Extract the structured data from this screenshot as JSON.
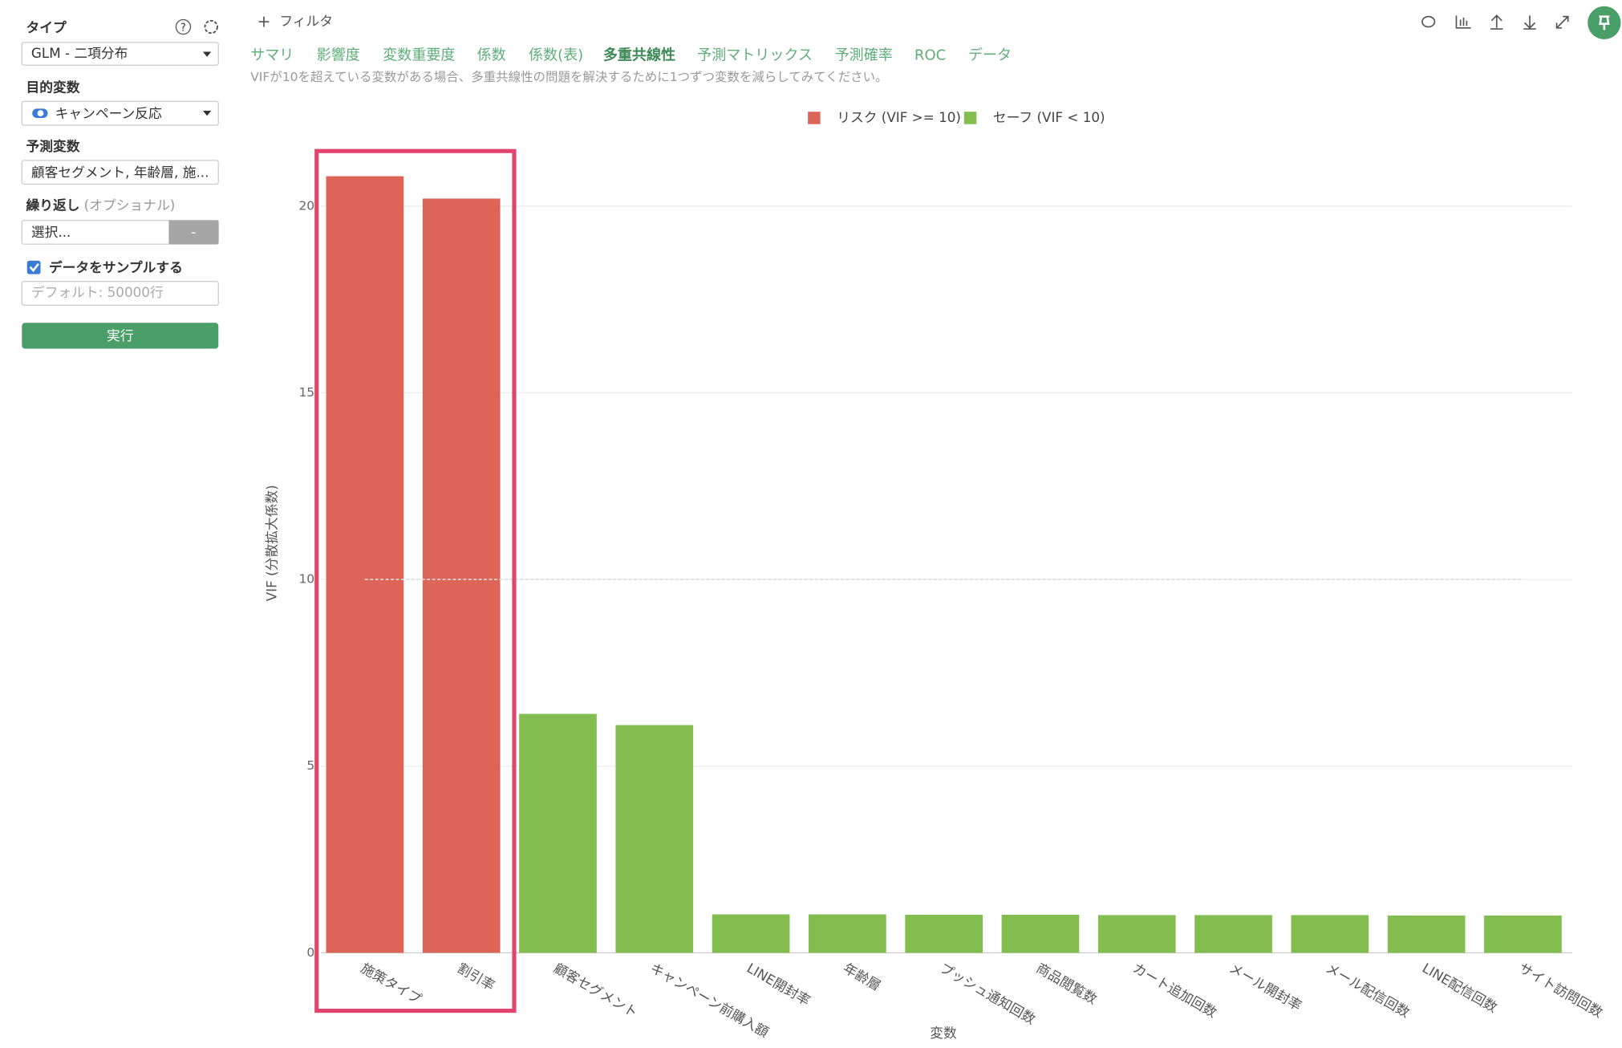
{
  "sidebar": {
    "type_label": "タイプ",
    "type_value": "GLM - 二項分布",
    "target_label": "目的変数",
    "target_value": "キャンペーン反応",
    "predictors_label": "予測変数",
    "predictors_value": "顧客セグメント, 年齢層, 施...",
    "repeat_label": "繰り返し",
    "repeat_optional": "(オプショナル)",
    "repeat_placeholder": "選択...",
    "repeat_button": "-",
    "sample_label": "データをサンプルする",
    "sample_placeholder": "デフォルト: 50000行",
    "run_button": "実行"
  },
  "toolbar": {
    "filter": "フィルタ"
  },
  "tabs": [
    "サマリ",
    "影響度",
    "変数重要度",
    "係数",
    "係数(表)",
    "多重共線性",
    "予測マトリックス",
    "予測確率",
    "ROC",
    "データ"
  ],
  "active_tab": 5,
  "note": "VIFが10を超えている変数がある場合、多重共線性の問題を解決するために1つずつ変数を減らしてみてください。",
  "chart_data": {
    "type": "bar",
    "x_label": "変数",
    "y_label": "VIF (分散拡大係数)",
    "categories": [
      "施策タイプ",
      "割引率",
      "顧客セグメント",
      "キャンペーン前購入額",
      "LINE開封率",
      "年齢層",
      "プッシュ通知回数",
      "商品閲覧数",
      "カート追加回数",
      "メール開封率",
      "メール配信回数",
      "LINE配信回数",
      "サイト訪問回数"
    ],
    "series": [
      {
        "name": "リスク (VIF >= 10)",
        "color": "#dc6558",
        "values": [
          20.8,
          20.2,
          null,
          null,
          null,
          null,
          null,
          null,
          null,
          null,
          null,
          null,
          null
        ]
      },
      {
        "name": "セーフ (VIF < 10)",
        "color": "#84bd4f",
        "values": [
          null,
          null,
          6.4,
          6.1,
          1.03,
          1.03,
          1.02,
          1.02,
          1.01,
          1.01,
          1.01,
          1.0,
          1.0
        ]
      }
    ],
    "ylim": [
      0,
      22
    ],
    "yticks": [
      0,
      5,
      10,
      15,
      20
    ],
    "threshold": 10,
    "grid": true,
    "legend": "top"
  }
}
